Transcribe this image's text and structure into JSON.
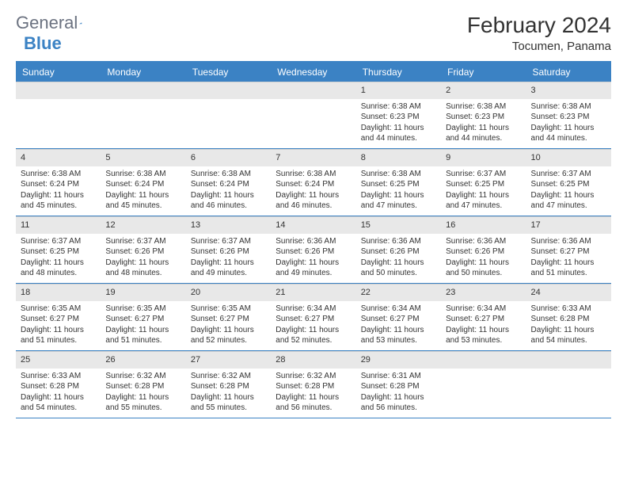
{
  "brand": {
    "general": "General",
    "blue": "Blue"
  },
  "title": "February 2024",
  "location": "Tocumen, Panama",
  "colors": {
    "accent": "#3b82c4",
    "dayNumBg": "#e8e8e8",
    "text": "#333333"
  },
  "dayNames": [
    "Sunday",
    "Monday",
    "Tuesday",
    "Wednesday",
    "Thursday",
    "Friday",
    "Saturday"
  ],
  "weeks": [
    [
      null,
      null,
      null,
      null,
      {
        "n": "1",
        "sr": "6:38 AM",
        "ss": "6:23 PM",
        "dl": "11 hours and 44 minutes."
      },
      {
        "n": "2",
        "sr": "6:38 AM",
        "ss": "6:23 PM",
        "dl": "11 hours and 44 minutes."
      },
      {
        "n": "3",
        "sr": "6:38 AM",
        "ss": "6:23 PM",
        "dl": "11 hours and 44 minutes."
      }
    ],
    [
      {
        "n": "4",
        "sr": "6:38 AM",
        "ss": "6:24 PM",
        "dl": "11 hours and 45 minutes."
      },
      {
        "n": "5",
        "sr": "6:38 AM",
        "ss": "6:24 PM",
        "dl": "11 hours and 45 minutes."
      },
      {
        "n": "6",
        "sr": "6:38 AM",
        "ss": "6:24 PM",
        "dl": "11 hours and 46 minutes."
      },
      {
        "n": "7",
        "sr": "6:38 AM",
        "ss": "6:24 PM",
        "dl": "11 hours and 46 minutes."
      },
      {
        "n": "8",
        "sr": "6:38 AM",
        "ss": "6:25 PM",
        "dl": "11 hours and 47 minutes."
      },
      {
        "n": "9",
        "sr": "6:37 AM",
        "ss": "6:25 PM",
        "dl": "11 hours and 47 minutes."
      },
      {
        "n": "10",
        "sr": "6:37 AM",
        "ss": "6:25 PM",
        "dl": "11 hours and 47 minutes."
      }
    ],
    [
      {
        "n": "11",
        "sr": "6:37 AM",
        "ss": "6:25 PM",
        "dl": "11 hours and 48 minutes."
      },
      {
        "n": "12",
        "sr": "6:37 AM",
        "ss": "6:26 PM",
        "dl": "11 hours and 48 minutes."
      },
      {
        "n": "13",
        "sr": "6:37 AM",
        "ss": "6:26 PM",
        "dl": "11 hours and 49 minutes."
      },
      {
        "n": "14",
        "sr": "6:36 AM",
        "ss": "6:26 PM",
        "dl": "11 hours and 49 minutes."
      },
      {
        "n": "15",
        "sr": "6:36 AM",
        "ss": "6:26 PM",
        "dl": "11 hours and 50 minutes."
      },
      {
        "n": "16",
        "sr": "6:36 AM",
        "ss": "6:26 PM",
        "dl": "11 hours and 50 minutes."
      },
      {
        "n": "17",
        "sr": "6:36 AM",
        "ss": "6:27 PM",
        "dl": "11 hours and 51 minutes."
      }
    ],
    [
      {
        "n": "18",
        "sr": "6:35 AM",
        "ss": "6:27 PM",
        "dl": "11 hours and 51 minutes."
      },
      {
        "n": "19",
        "sr": "6:35 AM",
        "ss": "6:27 PM",
        "dl": "11 hours and 51 minutes."
      },
      {
        "n": "20",
        "sr": "6:35 AM",
        "ss": "6:27 PM",
        "dl": "11 hours and 52 minutes."
      },
      {
        "n": "21",
        "sr": "6:34 AM",
        "ss": "6:27 PM",
        "dl": "11 hours and 52 minutes."
      },
      {
        "n": "22",
        "sr": "6:34 AM",
        "ss": "6:27 PM",
        "dl": "11 hours and 53 minutes."
      },
      {
        "n": "23",
        "sr": "6:34 AM",
        "ss": "6:27 PM",
        "dl": "11 hours and 53 minutes."
      },
      {
        "n": "24",
        "sr": "6:33 AM",
        "ss": "6:28 PM",
        "dl": "11 hours and 54 minutes."
      }
    ],
    [
      {
        "n": "25",
        "sr": "6:33 AM",
        "ss": "6:28 PM",
        "dl": "11 hours and 54 minutes."
      },
      {
        "n": "26",
        "sr": "6:32 AM",
        "ss": "6:28 PM",
        "dl": "11 hours and 55 minutes."
      },
      {
        "n": "27",
        "sr": "6:32 AM",
        "ss": "6:28 PM",
        "dl": "11 hours and 55 minutes."
      },
      {
        "n": "28",
        "sr": "6:32 AM",
        "ss": "6:28 PM",
        "dl": "11 hours and 56 minutes."
      },
      {
        "n": "29",
        "sr": "6:31 AM",
        "ss": "6:28 PM",
        "dl": "11 hours and 56 minutes."
      },
      null,
      null
    ]
  ],
  "labels": {
    "sunrise": "Sunrise:",
    "sunset": "Sunset:",
    "daylight": "Daylight:"
  }
}
